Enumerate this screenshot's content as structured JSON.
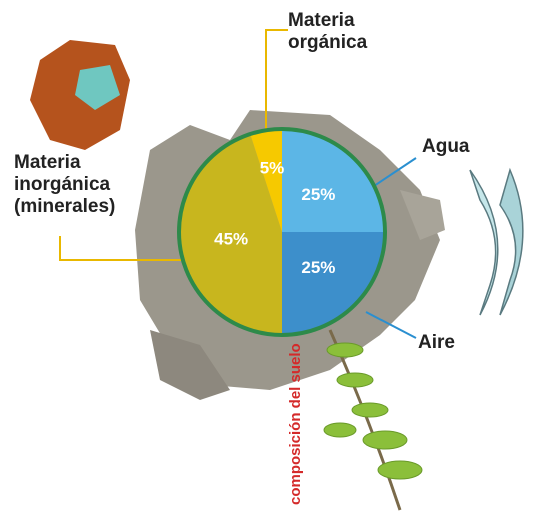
{
  "chart_data": {
    "type": "pie",
    "categories": [
      "Agua",
      "Aire",
      "Materia inorgánica (minerales)",
      "Materia orgánica"
    ],
    "values": [
      25,
      25,
      45,
      5
    ],
    "value_labels": [
      "25%",
      "25%",
      "45%",
      "5%"
    ],
    "colors": [
      "#5cb6e6",
      "#3d8fcb",
      "#c8b61e",
      "#f6c900"
    ],
    "annotation": "composición del suelo"
  }
}
